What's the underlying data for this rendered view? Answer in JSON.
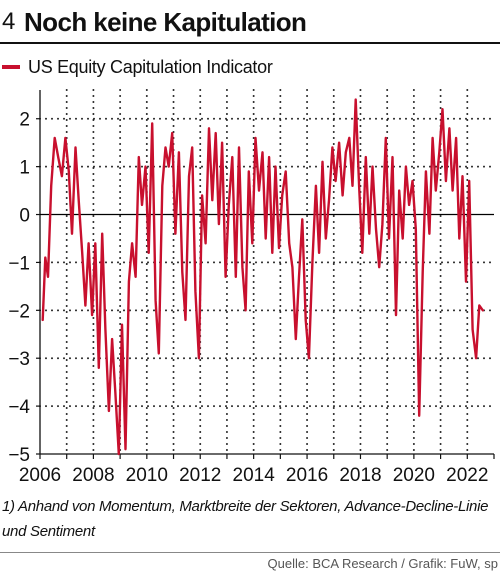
{
  "header": {
    "number": "4",
    "title": "Noch keine Kapitulation"
  },
  "footnote": "1) Anhand von Momentum, Marktbreite der Sektoren, Advance-Decline-Linie und Sentiment",
  "source": "Quelle: BCA Research / Grafik: FuW, sp",
  "colors": {
    "series": "#c8102e",
    "grid": "#222222",
    "zero_line": "#000000"
  },
  "chart_data": {
    "type": "line",
    "title": "",
    "xlabel": "",
    "ylabel": "",
    "xlim": [
      2006,
      2023.0
    ],
    "ylim": [
      -5,
      2.6
    ],
    "x_ticks": [
      2006,
      2008,
      2010,
      2012,
      2014,
      2016,
      2018,
      2020,
      2022
    ],
    "x_tick_labels": [
      "2006",
      "2008",
      "2010",
      "2012",
      "2014",
      "2016",
      "2018",
      "2020",
      "2022"
    ],
    "y_ticks": [
      2,
      1,
      0,
      -1,
      -2,
      -3,
      -4,
      -5
    ],
    "y_tick_labels": [
      "2",
      "1",
      "0",
      "−1",
      "−2",
      "−3",
      "−4",
      "−5"
    ],
    "grid": true,
    "legend_position": "top-left",
    "series": [
      {
        "name": "US Equity Capitulation Indicator",
        "x": [
          2006.1,
          2006.2,
          2006.3,
          2006.42,
          2006.55,
          2006.68,
          2006.82,
          2006.95,
          2007.08,
          2007.2,
          2007.33,
          2007.45,
          2007.58,
          2007.7,
          2007.82,
          2007.95,
          2008.07,
          2008.2,
          2008.33,
          2008.45,
          2008.58,
          2008.7,
          2008.82,
          2008.95,
          2009.07,
          2009.2,
          2009.33,
          2009.45,
          2009.58,
          2009.7,
          2009.82,
          2009.95,
          2010.07,
          2010.2,
          2010.33,
          2010.45,
          2010.58,
          2010.7,
          2010.82,
          2010.95,
          2011.07,
          2011.2,
          2011.33,
          2011.45,
          2011.58,
          2011.7,
          2011.82,
          2011.95,
          2012.07,
          2012.2,
          2012.33,
          2012.45,
          2012.58,
          2012.7,
          2012.82,
          2012.95,
          2013.07,
          2013.2,
          2013.33,
          2013.45,
          2013.58,
          2013.7,
          2013.82,
          2013.95,
          2014.07,
          2014.2,
          2014.33,
          2014.45,
          2014.58,
          2014.7,
          2014.82,
          2014.95,
          2015.07,
          2015.2,
          2015.33,
          2015.45,
          2015.58,
          2015.7,
          2015.82,
          2015.95,
          2016.07,
          2016.2,
          2016.33,
          2016.45,
          2016.58,
          2016.7,
          2016.82,
          2016.95,
          2017.07,
          2017.2,
          2017.33,
          2017.45,
          2017.58,
          2017.7,
          2017.82,
          2017.95,
          2018.07,
          2018.2,
          2018.33,
          2018.45,
          2018.58,
          2018.7,
          2018.82,
          2018.95,
          2019.07,
          2019.2,
          2019.33,
          2019.45,
          2019.58,
          2019.7,
          2019.82,
          2019.95,
          2020.07,
          2020.2,
          2020.33,
          2020.45,
          2020.58,
          2020.7,
          2020.82,
          2020.95,
          2021.07,
          2021.2,
          2021.33,
          2021.45,
          2021.58,
          2021.7,
          2021.82,
          2021.95,
          2022.07,
          2022.2,
          2022.33,
          2022.45,
          2022.58
        ],
        "y": [
          -2.2,
          -0.9,
          -1.3,
          0.6,
          1.6,
          1.2,
          0.8,
          1.6,
          0.9,
          -0.4,
          1.4,
          0.3,
          -0.8,
          -1.9,
          -0.6,
          -2.1,
          -0.6,
          -3.2,
          -0.4,
          -2.4,
          -4.1,
          -2.6,
          -3.7,
          -5.0,
          -2.3,
          -4.9,
          -1.4,
          -0.6,
          -1.3,
          1.2,
          0.2,
          1.0,
          -0.8,
          1.9,
          -1.8,
          -2.9,
          0.6,
          1.4,
          1.0,
          1.7,
          -0.4,
          1.3,
          -1.2,
          -2.2,
          0.8,
          1.4,
          -1.6,
          -3.0,
          0.4,
          -0.6,
          1.8,
          0.3,
          1.7,
          -0.2,
          1.5,
          -1.3,
          0.2,
          1.2,
          -1.3,
          1.4,
          -1.1,
          -2.0,
          0.9,
          -0.6,
          1.6,
          0.5,
          1.3,
          -0.5,
          1.2,
          -0.8,
          1.0,
          -0.7,
          0.4,
          0.9,
          -0.6,
          -1.1,
          -2.6,
          -1.3,
          -0.1,
          -2.2,
          -3.0,
          -1.0,
          0.6,
          -0.8,
          1.1,
          -0.5,
          0.3,
          1.4,
          0.7,
          1.5,
          0.4,
          1.3,
          1.6,
          0.6,
          2.4,
          0.6,
          -0.8,
          1.2,
          -0.4,
          1.0,
          -0.3,
          -1.1,
          -0.2,
          1.6,
          -0.5,
          1.2,
          -2.1,
          0.5,
          -0.5,
          1.0,
          0.2,
          0.7,
          -0.3,
          -4.2,
          -1.2,
          0.9,
          -0.4,
          1.6,
          0.5,
          1.3,
          2.2,
          0.7,
          1.8,
          0.5,
          1.6,
          -0.5,
          0.8,
          -1.4,
          0.7,
          -2.4,
          -3.0,
          -1.9,
          -2.0
        ]
      }
    ]
  }
}
